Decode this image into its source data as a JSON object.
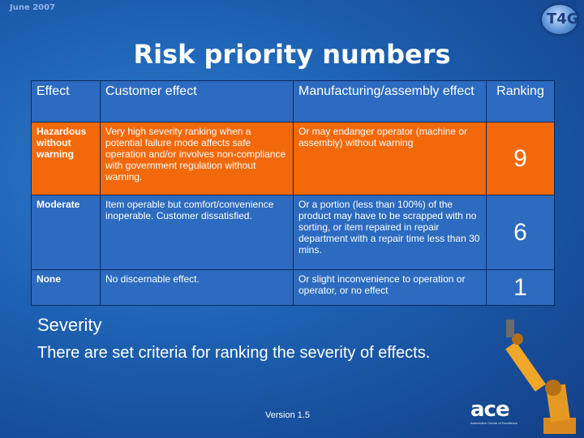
{
  "header": {
    "date": "June 2007",
    "logo_text": "T4G",
    "title": "Risk priority numbers"
  },
  "table": {
    "columns": [
      "Effect",
      "Customer effect",
      "Manufacturing/assembly effect",
      "Ranking"
    ],
    "rows": [
      {
        "effect": "Hazardous without warning",
        "customer": "Very high severity ranking when a potential failure mode affects safe operation and/or involves non-compliance with government regulation without warning.",
        "manufacturing": "Or may endanger operator (machine or assembly) without warning",
        "ranking": "9"
      },
      {
        "effect": "Moderate",
        "customer": "Item operable but comfort/convenience inoperable. Customer dissatisfied.",
        "manufacturing": "Or a portion (less than 100%) of the product may have to be scrapped with no sorting, or item repaired in repair department with a repair time less than 30 mins.",
        "ranking": "6"
      },
      {
        "effect": "None",
        "customer": "No discernable effect.",
        "manufacturing": "Or slight inconvenience to operation or operator, or no effect",
        "ranking": "1"
      }
    ]
  },
  "body": {
    "heading": "Severity",
    "text": "There are set criteria for ranking the severity of effects."
  },
  "footer": {
    "version": "Version 1.5",
    "ace_logo": "ace",
    "ace_tagline": "Automotive Centre of Excellence"
  },
  "colors": {
    "background": "#1d5fb0",
    "highlight_row": "#f2690b",
    "table_row": "#2c6bbf",
    "text": "#ffffff"
  }
}
